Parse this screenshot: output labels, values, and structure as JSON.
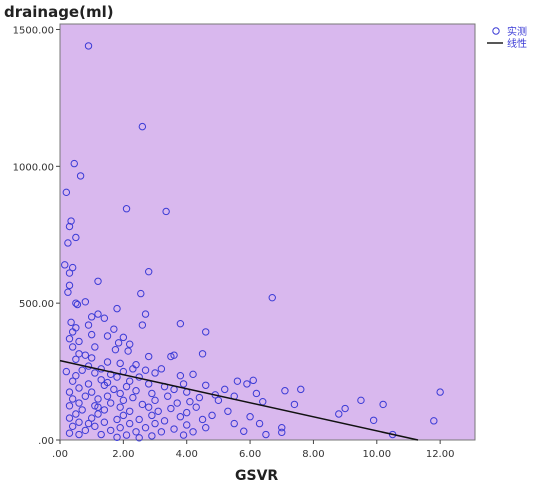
{
  "chart_data": {
    "type": "scatter",
    "title": "",
    "ylabel": "drainage(ml)",
    "xlabel": "GSVR",
    "xlim": [
      0,
      13.1
    ],
    "ylim": [
      0,
      1520
    ],
    "xticks": [
      0,
      2,
      4,
      6,
      8,
      10,
      12
    ],
    "xtick_labels": [
      ".00",
      "2.00",
      "4.00",
      "6.00",
      "8.00",
      "10.00",
      "12.00"
    ],
    "yticks": [
      0,
      500,
      1000,
      1500
    ],
    "ytick_labels": [
      ".00",
      "500.00",
      "1000.00",
      "1500.00"
    ],
    "grid": false,
    "legend_position": "top-right",
    "colors": {
      "plot_bg": "#d9b8ee",
      "marker": "#3b3bd6",
      "line": "#111111"
    },
    "series": [
      {
        "name": "实测",
        "kind": "scatter",
        "points": [
          [
            0.9,
            1440
          ],
          [
            2.6,
            1145
          ],
          [
            0.45,
            1010
          ],
          [
            0.65,
            965
          ],
          [
            0.2,
            905
          ],
          [
            2.1,
            845
          ],
          [
            3.35,
            835
          ],
          [
            0.35,
            800
          ],
          [
            0.3,
            780
          ],
          [
            0.5,
            740
          ],
          [
            0.25,
            720
          ],
          [
            0.15,
            640
          ],
          [
            0.4,
            630
          ],
          [
            0.3,
            610
          ],
          [
            2.8,
            615
          ],
          [
            0.3,
            565
          ],
          [
            0.25,
            540
          ],
          [
            1.2,
            580
          ],
          [
            6.7,
            520
          ],
          [
            2.55,
            535
          ],
          [
            0.5,
            500
          ],
          [
            0.8,
            505
          ],
          [
            0.55,
            495
          ],
          [
            1.8,
            480
          ],
          [
            2.7,
            460
          ],
          [
            1.2,
            460
          ],
          [
            1.0,
            450
          ],
          [
            1.4,
            445
          ],
          [
            0.35,
            430
          ],
          [
            0.9,
            420
          ],
          [
            2.6,
            420
          ],
          [
            3.8,
            425
          ],
          [
            0.5,
            410
          ],
          [
            1.7,
            405
          ],
          [
            4.6,
            395
          ],
          [
            0.4,
            395
          ],
          [
            1.0,
            385
          ],
          [
            1.5,
            380
          ],
          [
            2.0,
            375
          ],
          [
            0.3,
            370
          ],
          [
            0.6,
            360
          ],
          [
            1.85,
            355
          ],
          [
            2.2,
            350
          ],
          [
            0.4,
            340
          ],
          [
            1.1,
            340
          ],
          [
            1.75,
            330
          ],
          [
            2.15,
            325
          ],
          [
            0.6,
            315
          ],
          [
            0.8,
            310
          ],
          [
            3.5,
            305
          ],
          [
            1.0,
            300
          ],
          [
            2.8,
            305
          ],
          [
            3.6,
            310
          ],
          [
            4.5,
            315
          ],
          [
            0.5,
            295
          ],
          [
            1.5,
            285
          ],
          [
            1.9,
            280
          ],
          [
            2.4,
            275
          ],
          [
            0.9,
            270
          ],
          [
            1.3,
            260
          ],
          [
            2.7,
            255
          ],
          [
            3.2,
            260
          ],
          [
            0.7,
            255
          ],
          [
            2.0,
            250
          ],
          [
            3.0,
            245
          ],
          [
            0.2,
            250
          ],
          [
            1.1,
            245
          ],
          [
            1.6,
            240
          ],
          [
            0.5,
            235
          ],
          [
            1.8,
            230
          ],
          [
            2.5,
            230
          ],
          [
            3.8,
            235
          ],
          [
            4.2,
            240
          ],
          [
            1.3,
            220
          ],
          [
            2.2,
            215
          ],
          [
            5.6,
            215
          ],
          [
            6.1,
            218
          ],
          [
            5.9,
            205
          ],
          [
            0.4,
            215
          ],
          [
            0.9,
            205
          ],
          [
            1.4,
            200
          ],
          [
            2.8,
            205
          ],
          [
            3.9,
            205
          ],
          [
            2.1,
            195
          ],
          [
            3.3,
            195
          ],
          [
            4.6,
            200
          ],
          [
            0.6,
            190
          ],
          [
            1.7,
            185
          ],
          [
            2.4,
            180
          ],
          [
            3.6,
            185
          ],
          [
            5.2,
            185
          ],
          [
            7.1,
            180
          ],
          [
            7.6,
            185
          ],
          [
            12.0,
            175
          ],
          [
            0.3,
            175
          ],
          [
            1.0,
            175
          ],
          [
            1.9,
            170
          ],
          [
            2.9,
            170
          ],
          [
            4.0,
            175
          ],
          [
            4.9,
            165
          ],
          [
            6.2,
            170
          ],
          [
            0.8,
            160
          ],
          [
            1.5,
            160
          ],
          [
            2.3,
            155
          ],
          [
            3.4,
            160
          ],
          [
            4.4,
            155
          ],
          [
            5.5,
            160
          ],
          [
            0.4,
            150
          ],
          [
            1.2,
            150
          ],
          [
            2.0,
            145
          ],
          [
            3.0,
            145
          ],
          [
            4.1,
            140
          ],
          [
            5.0,
            145
          ],
          [
            9.5,
            145
          ],
          [
            0.6,
            135
          ],
          [
            1.6,
            135
          ],
          [
            2.6,
            130
          ],
          [
            3.7,
            135
          ],
          [
            6.4,
            140
          ],
          [
            7.4,
            130
          ],
          [
            10.2,
            130
          ],
          [
            0.3,
            125
          ],
          [
            1.1,
            125
          ],
          [
            1.9,
            120
          ],
          [
            2.8,
            120
          ],
          [
            3.5,
            115
          ],
          [
            4.3,
            120
          ],
          [
            9.0,
            115
          ],
          [
            0.7,
            110
          ],
          [
            1.4,
            110
          ],
          [
            2.2,
            105
          ],
          [
            3.1,
            105
          ],
          [
            4.0,
            100
          ],
          [
            5.3,
            105
          ],
          [
            8.8,
            95
          ],
          [
            0.5,
            95
          ],
          [
            1.2,
            95
          ],
          [
            2.0,
            90
          ],
          [
            2.9,
            90
          ],
          [
            3.8,
            85
          ],
          [
            4.8,
            90
          ],
          [
            6.0,
            85
          ],
          [
            0.3,
            80
          ],
          [
            1.0,
            80
          ],
          [
            1.8,
            75
          ],
          [
            2.5,
            75
          ],
          [
            3.3,
            70
          ],
          [
            4.5,
            75
          ],
          [
            9.9,
            72
          ],
          [
            11.8,
            70
          ],
          [
            0.6,
            65
          ],
          [
            1.4,
            65
          ],
          [
            2.2,
            60
          ],
          [
            3.0,
            60
          ],
          [
            4.0,
            55
          ],
          [
            5.5,
            60
          ],
          [
            6.3,
            60
          ],
          [
            0.4,
            50
          ],
          [
            1.1,
            50
          ],
          [
            1.9,
            45
          ],
          [
            2.7,
            45
          ],
          [
            3.6,
            40
          ],
          [
            4.6,
            45
          ],
          [
            7.0,
            45
          ],
          [
            0.8,
            35
          ],
          [
            1.6,
            35
          ],
          [
            2.4,
            30
          ],
          [
            3.2,
            30
          ],
          [
            4.2,
            30
          ],
          [
            5.8,
            32
          ],
          [
            7.0,
            28
          ],
          [
            0.3,
            25
          ],
          [
            1.3,
            20
          ],
          [
            2.1,
            18
          ],
          [
            2.9,
            15
          ],
          [
            3.9,
            18
          ],
          [
            6.5,
            20
          ],
          [
            1.8,
            10
          ],
          [
            2.5,
            8
          ],
          [
            10.5,
            20
          ],
          [
            0.6,
            20
          ],
          [
            0.9,
            60
          ],
          [
            1.2,
            120
          ],
          [
            1.5,
            210
          ],
          [
            2.3,
            260
          ]
        ]
      },
      {
        "name": "线性",
        "kind": "line",
        "x": [
          0,
          11.3
        ],
        "y": [
          290,
          0
        ]
      }
    ]
  }
}
